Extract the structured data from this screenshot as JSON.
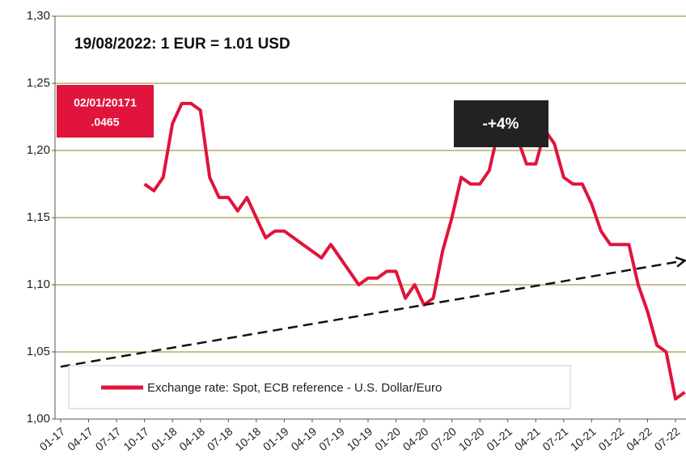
{
  "chart_data": {
    "type": "line",
    "title": "19/08/2022: 1 EUR = 1.01 USD",
    "ylim": [
      1.0,
      1.3
    ],
    "yticks": [
      {
        "value": 1.0,
        "label": "1,00"
      },
      {
        "value": 1.05,
        "label": "1,05"
      },
      {
        "value": 1.1,
        "label": "1,10"
      },
      {
        "value": 1.15,
        "label": "1,15"
      },
      {
        "value": 1.2,
        "label": "1,20"
      },
      {
        "value": 1.25,
        "label": "1,25"
      },
      {
        "value": 1.3,
        "label": "1,30"
      }
    ],
    "xticks": [
      "01-17",
      "04-17",
      "07-17",
      "10-17",
      "01-18",
      "04-18",
      "07-18",
      "10-18",
      "01-19",
      "04-19",
      "07-19",
      "10-19",
      "01-20",
      "04-20",
      "07-20",
      "10-20",
      "01-21",
      "04-21",
      "07-21",
      "10-21",
      "01-22",
      "04-22",
      "07-22"
    ],
    "grid": true,
    "series": [
      {
        "name": "Exchange rate: Spot, ECB reference - U.S. Dollar/Euro",
        "color": "#e0143c",
        "x": [
          "10-17",
          "11-17",
          "12-17",
          "01-18",
          "02-18",
          "03-18",
          "04-18",
          "05-18",
          "06-18",
          "07-18",
          "08-18",
          "09-18",
          "10-18",
          "11-18",
          "12-18",
          "01-19",
          "02-19",
          "03-19",
          "04-19",
          "05-19",
          "06-19",
          "07-19",
          "08-19",
          "09-19",
          "10-19",
          "11-19",
          "12-19",
          "01-20",
          "02-20",
          "03-20",
          "04-20",
          "05-20",
          "06-20",
          "07-20",
          "08-20",
          "09-20",
          "10-20",
          "11-20",
          "12-20",
          "01-21",
          "02-21",
          "03-21",
          "04-21",
          "05-21",
          "06-21",
          "07-21",
          "08-21",
          "09-21",
          "10-21",
          "11-21",
          "12-21",
          "01-22",
          "02-22",
          "03-22",
          "04-22",
          "05-22",
          "06-22",
          "07-22",
          "08-22"
        ],
        "values": [
          1.175,
          1.17,
          1.18,
          1.22,
          1.235,
          1.235,
          1.23,
          1.18,
          1.165,
          1.165,
          1.155,
          1.165,
          1.15,
          1.135,
          1.14,
          1.14,
          1.135,
          1.13,
          1.125,
          1.12,
          1.13,
          1.12,
          1.11,
          1.1,
          1.105,
          1.105,
          1.11,
          1.11,
          1.09,
          1.1,
          1.085,
          1.09,
          1.125,
          1.15,
          1.18,
          1.175,
          1.175,
          1.185,
          1.215,
          1.215,
          1.21,
          1.19,
          1.19,
          1.215,
          1.205,
          1.18,
          1.175,
          1.175,
          1.16,
          1.14,
          1.13,
          1.13,
          1.13,
          1.1,
          1.08,
          1.055,
          1.05,
          1.015,
          1.02
        ]
      }
    ],
    "trend": {
      "x": [
        "01-17",
        "08-22"
      ],
      "values": [
        1.039,
        1.118
      ]
    },
    "annotations": [
      "02/01/20171",
      ".0465",
      "-+4%"
    ]
  }
}
